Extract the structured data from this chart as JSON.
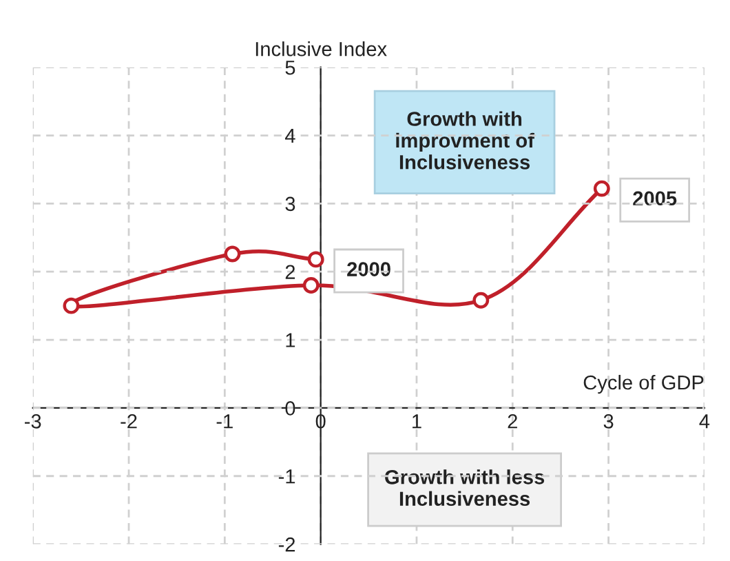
{
  "chart_data": {
    "type": "line",
    "xlabel": "Cycle of GDP",
    "ylabel": "Inclusive Index",
    "series": [
      {
        "color": "#c0202a",
        "x": [
          -0.05,
          -0.92,
          -2.6,
          -0.1,
          1.67,
          2.93
        ],
        "values": [
          2.18,
          2.26,
          1.5,
          1.8,
          1.58,
          3.22
        ]
      }
    ],
    "marker": "circle",
    "line_style": "solid",
    "grid": true,
    "xlim": [
      -3,
      4
    ],
    "ylim": [
      -2,
      5
    ],
    "xticks": [
      -3,
      -2,
      -1,
      0,
      1,
      2,
      3,
      4
    ],
    "yticks": [
      -2,
      -1,
      0,
      1,
      2,
      3,
      4,
      5
    ],
    "annotations": [
      "Growth with\nimprovment of\nInclusiveness",
      "Growth with less\nInclusiveness",
      {
        "text": "2000",
        "x": -0.05,
        "y": 2.18
      },
      {
        "text": "2005",
        "x": 2.93,
        "y": 3.22
      }
    ]
  }
}
